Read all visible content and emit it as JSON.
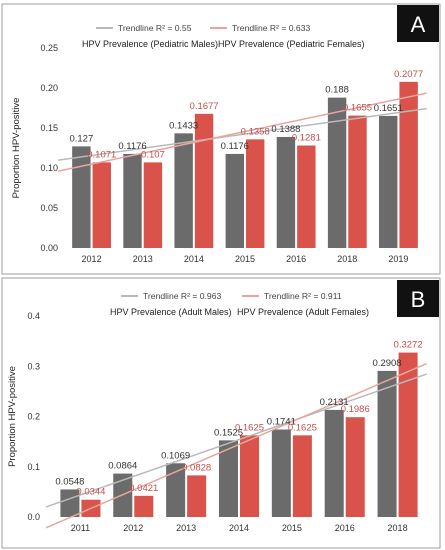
{
  "chart_data": [
    {
      "type": "bar",
      "badge": "A",
      "ylabel": "Proportion HPV-positive",
      "ylim": [
        0,
        0.25
      ],
      "yticks": [
        "0.00",
        "0.05",
        "0.10",
        "0.15",
        "0.20",
        "0.25"
      ],
      "categories": [
        "2012",
        "2013",
        "2014",
        "2015",
        "2016",
        "2018",
        "2019"
      ],
      "series": [
        {
          "name": "HPV Prevalence (Pediatric Males)",
          "color": "#6b6b6b",
          "values": [
            0.127,
            0.1176,
            0.1433,
            0.1176,
            0.1388,
            0.188,
            0.1651
          ],
          "labels": [
            "0.127",
            "0.1176",
            "0.1433",
            "0.1176",
            "0.1388",
            "0.188",
            "0.1651"
          ]
        },
        {
          "name": "HPV Prevalence (Pediatric Females)",
          "color": "#d9534a",
          "values": [
            0.1071,
            0.107,
            0.1677,
            0.1358,
            0.1281,
            0.1655,
            0.2077
          ],
          "labels": [
            "0.1071",
            "0.107",
            "0.1677",
            "0.1358",
            "0.1281",
            "0.1655",
            "0.2077"
          ]
        }
      ],
      "trendlines": [
        {
          "label": "Trendline R² = 0.55",
          "color": "#b9b9b9"
        },
        {
          "label": "Trendline R² = 0.633",
          "color": "#e8a5a0"
        }
      ],
      "grid": false,
      "legend": "top"
    },
    {
      "type": "bar",
      "badge": "B",
      "ylabel": "Proportion HPV-positive",
      "ylim": [
        0,
        0.4
      ],
      "yticks": [
        "0.0",
        "0.1",
        "0.2",
        "0.3",
        "0.4"
      ],
      "categories": [
        "2011",
        "2012",
        "2013",
        "2014",
        "2015",
        "2016",
        "2018"
      ],
      "series": [
        {
          "name": "HPV Prevalence (Adult Males)",
          "color": "#6b6b6b",
          "values": [
            0.0548,
            0.0864,
            0.1069,
            0.1525,
            0.1741,
            0.2131,
            0.2908
          ],
          "labels": [
            "0.0548",
            "0.0864",
            "0.1069",
            "0.1525",
            "0.1741",
            "0.2131",
            "0.2908"
          ]
        },
        {
          "name": "HPV Prevalence (Adult Females)",
          "color": "#d9534a",
          "values": [
            0.0344,
            0.0421,
            0.0828,
            0.1625,
            0.1625,
            0.1986,
            0.3272
          ],
          "labels": [
            "0.0344",
            "0.0421",
            "0.0828",
            "0.1625",
            "0.1625",
            "0.1986",
            "0.3272"
          ]
        }
      ],
      "trendlines": [
        {
          "label": "Trendline R² = 0.963",
          "color": "#b9b9b9"
        },
        {
          "label": "Trendline R² = 0.911",
          "color": "#e8a5a0"
        }
      ],
      "grid": false,
      "legend": "top"
    }
  ]
}
